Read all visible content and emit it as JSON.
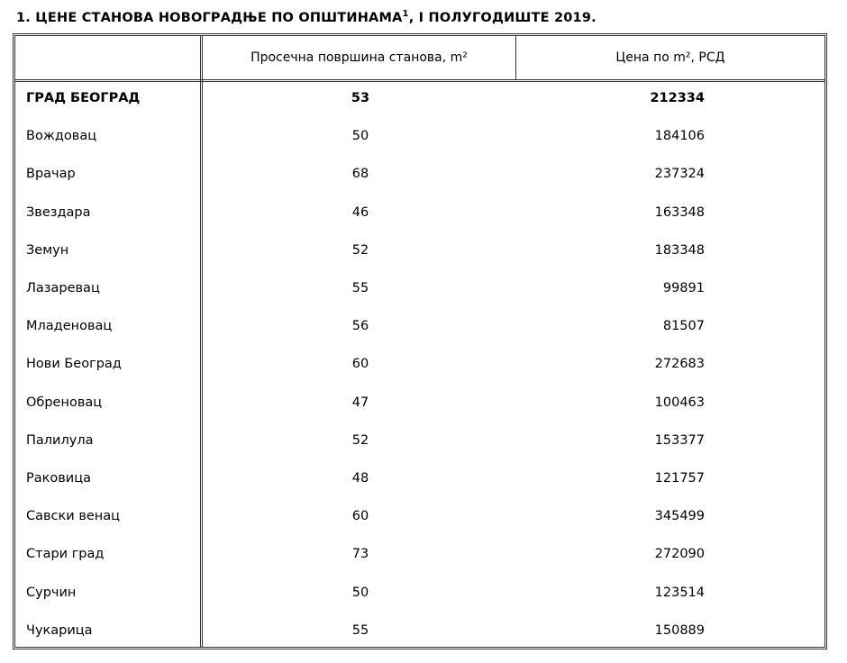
{
  "title": {
    "text": "1.  ЦЕНЕ СТАНОВА НОВОГРАДЊЕ ПО ОПШТИНАМА",
    "footnote": "1",
    "suffix": ", I ПОЛУГОДИШТЕ 2019."
  },
  "headers": [
    "",
    "Просечна површина станова, m²",
    "Цена по m², РСД"
  ],
  "rows": [
    {
      "name": "ГРАД БЕОГРАД",
      "area": "53",
      "price": "212334"
    },
    {
      "name": "Вождовац",
      "area": "50",
      "price": "184106"
    },
    {
      "name": "Врачар",
      "area": "68",
      "price": "237324"
    },
    {
      "name": "Звездара",
      "area": "46",
      "price": "163348"
    },
    {
      "name": "Земун",
      "area": "52",
      "price": "183348"
    },
    {
      "name": "Лазаревац",
      "area": "55",
      "price": "99891"
    },
    {
      "name": "Младеновац",
      "area": "56",
      "price": "81507"
    },
    {
      "name": "Нови Београд",
      "area": "60",
      "price": "272683"
    },
    {
      "name": "Обреновац",
      "area": "47",
      "price": "100463"
    },
    {
      "name": "Палилула",
      "area": "52",
      "price": "153377"
    },
    {
      "name": "Раковица",
      "area": "48",
      "price": "121757"
    },
    {
      "name": "Савски венац",
      "area": "60",
      "price": "345499"
    },
    {
      "name": "Стари град",
      "area": "73",
      "price": "272090"
    },
    {
      "name": "Сурчин",
      "area": "50",
      "price": "123514"
    },
    {
      "name": "Чукарица",
      "area": "55",
      "price": "150889"
    }
  ]
}
